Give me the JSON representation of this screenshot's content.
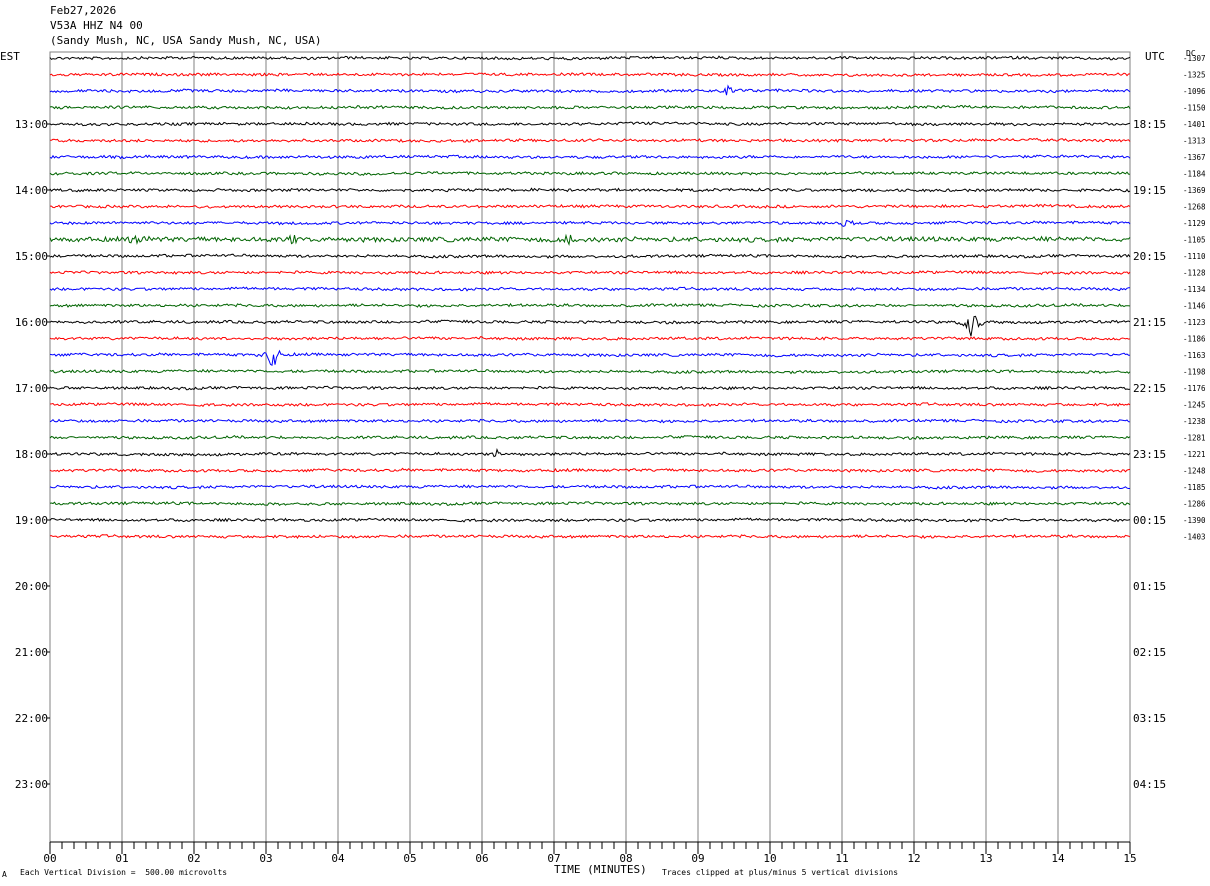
{
  "header": {
    "date": "Feb27,2026",
    "station": "V53A HHZ N4 00",
    "location": "(Sandy Mush, NC, USA Sandy Mush, NC, USA)"
  },
  "left_axis_label": "EST",
  "right_axis_label": "UTC",
  "dc_label": "DC",
  "footer": {
    "scale_note": "Each Vertical Division =  500.00 microvolts",
    "xlabel": "TIME (MINUTES)",
    "clip_note": "Traces clipped at plus/minus 5 vertical divisions",
    "corner_mark": "A"
  },
  "colors": {
    "trace_cycle": [
      "#000000",
      "#ff0000",
      "#0000ff",
      "#006400"
    ],
    "grid": "#808080"
  },
  "chart_data": {
    "type": "line",
    "title": "V53A HHZ N4 00",
    "xlabel": "TIME (MINUTES)",
    "x_ticks": [
      "00",
      "01",
      "02",
      "03",
      "04",
      "05",
      "06",
      "07",
      "08",
      "09",
      "10",
      "11",
      "12",
      "13",
      "14",
      "15"
    ],
    "xlim": [
      0,
      15
    ],
    "est_hour_labels": [
      "13:00",
      "14:00",
      "15:00",
      "16:00",
      "17:00",
      "18:00",
      "19:00",
      "20:00",
      "21:00",
      "22:00",
      "23:00"
    ],
    "utc_hour_labels": [
      "18:15",
      "19:15",
      "20:15",
      "21:15",
      "22:15",
      "23:15",
      "00:15",
      "01:15",
      "02:15",
      "03:15",
      "04:15"
    ],
    "trace_dc_offsets": [
      -1307,
      -1325,
      -1096,
      -1150,
      -1401,
      -1313,
      -1367,
      -1184,
      -1369,
      -1268,
      -1129,
      -1105,
      -1110,
      -1128,
      -1134,
      -1146,
      -1123,
      -1186,
      -1163,
      -1198,
      -1176,
      -1245,
      -1238,
      -1281,
      -1221,
      -1248,
      -1185,
      -1286,
      -1390,
      -1403
    ],
    "events": [
      {
        "trace": 2,
        "minute": 9.4,
        "amplitude": 1.8
      },
      {
        "trace": 11,
        "minute": 1.2,
        "amplitude": 1.2
      },
      {
        "trace": 11,
        "minute": 3.4,
        "amplitude": 1.1
      },
      {
        "trace": 11,
        "minute": 7.2,
        "amplitude": 1.0
      },
      {
        "trace": 10,
        "minute": 11.0,
        "amplitude": 1.0
      },
      {
        "trace": 16,
        "minute": 12.8,
        "amplitude": 3.0
      },
      {
        "trace": 18,
        "minute": 3.1,
        "amplitude": 3.0
      },
      {
        "trace": 24,
        "minute": 6.2,
        "amplitude": 0.8
      }
    ],
    "grid": true,
    "legend": "none"
  }
}
